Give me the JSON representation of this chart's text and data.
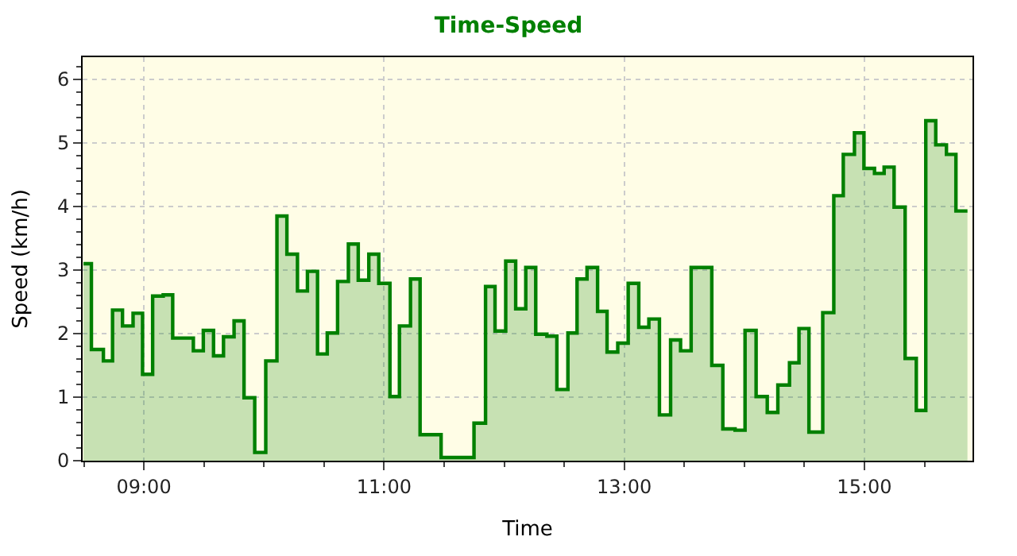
{
  "chart_data": {
    "type": "area",
    "title": "Time-Speed",
    "xlabel": "Time",
    "ylabel": "Speed (km/h)",
    "x": [
      8.497,
      8.563,
      8.563,
      8.663,
      8.663,
      8.739,
      8.739,
      8.822,
      8.822,
      8.91,
      8.91,
      8.989,
      8.989,
      9.073,
      9.073,
      9.161,
      9.161,
      9.24,
      9.24,
      9.412,
      9.412,
      9.495,
      9.495,
      9.58,
      9.58,
      9.663,
      9.663,
      9.751,
      9.751,
      9.834,
      9.834,
      9.923,
      9.923,
      10.015,
      10.015,
      10.108,
      10.108,
      10.191,
      10.191,
      10.279,
      10.279,
      10.362,
      10.362,
      10.446,
      10.446,
      10.527,
      10.527,
      10.613,
      10.613,
      10.703,
      10.703,
      10.785,
      10.785,
      10.873,
      10.873,
      10.956,
      10.956,
      11.049,
      11.049,
      11.128,
      11.128,
      11.22,
      11.22,
      11.3,
      11.3,
      11.475,
      11.475,
      11.749,
      11.749,
      11.845,
      11.845,
      11.924,
      11.924,
      12.013,
      12.013,
      12.096,
      12.096,
      12.18,
      12.18,
      12.263,
      12.263,
      12.356,
      12.356,
      12.439,
      12.439,
      12.531,
      12.531,
      12.607,
      12.607,
      12.69,
      12.69,
      12.778,
      12.778,
      12.857,
      12.857,
      12.946,
      12.946,
      13.033,
      13.033,
      13.121,
      13.121,
      13.205,
      13.205,
      13.293,
      13.293,
      13.386,
      13.386,
      13.469,
      13.469,
      13.557,
      13.557,
      13.729,
      13.729,
      13.821,
      13.821,
      13.923,
      13.923,
      14.006,
      14.006,
      14.098,
      14.098,
      14.191,
      14.191,
      14.279,
      14.279,
      14.376,
      14.376,
      14.455,
      14.455,
      14.538,
      14.538,
      14.653,
      14.653,
      14.745,
      14.745,
      14.824,
      14.824,
      14.917,
      14.917,
      14.996,
      14.996,
      15.084,
      15.084,
      15.164,
      15.164,
      15.247,
      15.247,
      15.339,
      15.339,
      15.432,
      15.432,
      15.511,
      15.511,
      15.594,
      15.594,
      15.683,
      15.683,
      15.762,
      15.762,
      15.858
    ],
    "series": [
      {
        "color": "#008000",
        "values": [
          3.1,
          3.1,
          1.75,
          1.75,
          1.57,
          1.57,
          2.37,
          2.37,
          2.12,
          2.12,
          2.32,
          2.32,
          1.36,
          1.36,
          2.59,
          2.59,
          2.61,
          2.61,
          1.93,
          1.93,
          1.73,
          1.73,
          2.05,
          2.05,
          1.65,
          1.65,
          1.95,
          1.95,
          2.2,
          2.2,
          0.99,
          0.99,
          0.13,
          0.13,
          1.57,
          1.57,
          3.85,
          3.85,
          3.25,
          3.25,
          2.67,
          2.67,
          2.98,
          2.98,
          1.68,
          1.68,
          2.01,
          2.01,
          2.82,
          2.82,
          3.41,
          3.41,
          2.84,
          2.84,
          3.25,
          3.25,
          2.79,
          2.79,
          1.01,
          1.01,
          2.12,
          2.12,
          2.86,
          2.86,
          0.41,
          0.41,
          0.05,
          0.05,
          0.59,
          0.59,
          2.74,
          2.74,
          2.04,
          2.04,
          3.14,
          3.14,
          2.39,
          2.39,
          3.04,
          3.04,
          1.99,
          1.99,
          1.96,
          1.96,
          1.12,
          1.12,
          2.01,
          2.01,
          2.86,
          2.86,
          3.04,
          3.04,
          2.35,
          2.35,
          1.71,
          1.71,
          1.85,
          1.85,
          2.79,
          2.79,
          2.1,
          2.1,
          2.23,
          2.23,
          0.72,
          0.72,
          1.9,
          1.9,
          1.73,
          1.73,
          3.04,
          3.04,
          1.5,
          1.5,
          0.5,
          0.5,
          0.48,
          0.48,
          2.05,
          2.05,
          1.01,
          1.01,
          0.76,
          0.76,
          1.19,
          1.19,
          1.54,
          1.54,
          2.08,
          2.08,
          0.45,
          0.45,
          2.33,
          2.33,
          4.17,
          4.17,
          4.82,
          4.82,
          5.16,
          5.16,
          4.6,
          4.6,
          4.52,
          4.52,
          4.62,
          4.62,
          3.99,
          3.99,
          1.61,
          1.61,
          0.79,
          0.79,
          5.35,
          5.35,
          4.97,
          4.97,
          4.82,
          4.82,
          3.93,
          3.93
        ]
      }
    ],
    "xlim": [
      8.49,
      15.9
    ],
    "xticks": [
      {
        "value": 9,
        "label": "09:00"
      },
      {
        "value": 11,
        "label": "11:00"
      },
      {
        "value": 13,
        "label": "13:00"
      },
      {
        "value": 15,
        "label": "15:00"
      }
    ],
    "ylim": [
      0,
      6.35
    ],
    "yticks": [
      0,
      1,
      2,
      3,
      4,
      5,
      6
    ],
    "grid": true,
    "legend": false,
    "marker": "none",
    "line_style": "solid"
  }
}
